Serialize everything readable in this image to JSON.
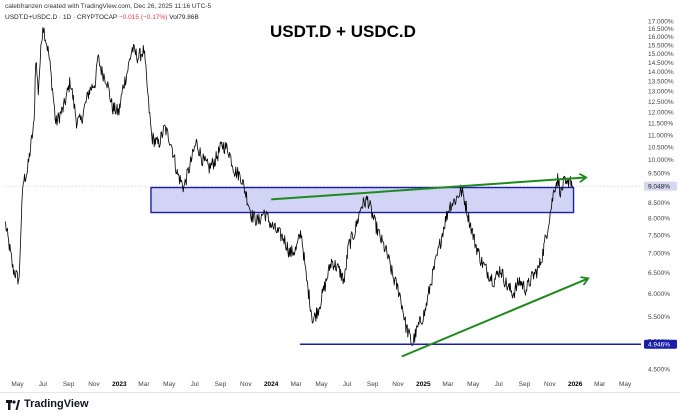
{
  "header": {
    "credit": "calebfranzen created with TradingView.com, Dec 26, 2025 11:16 UTC-5",
    "symbol": "USDT.D+USDC.D · 1D · CRYPTOCAP",
    "change": "−0.015 (−0.17%)",
    "volume": "Vol79.86B"
  },
  "footer": {
    "brand": "TradingView",
    "logo_icon": "tradingview-logo-icon"
  },
  "colors": {
    "price_line": "#000000",
    "zone_fill": "#c9cdf3",
    "zone_border": "#1a1fa8",
    "support_line": "#1a1fa8",
    "trend_arrow": "#1e8a1e",
    "badge_bg": "#1a1fa8",
    "last_badge_bg": "#d6d8ee"
  },
  "chart_data": {
    "type": "line",
    "title": "USDT.D + USDC.D",
    "xlabel": "",
    "ylabel": "",
    "y_scale": "log",
    "ylim": [
      4.3,
      17.4
    ],
    "grid": false,
    "y_ticks": [
      "17.000%",
      "16.500%",
      "16.000%",
      "15.500%",
      "15.000%",
      "14.500%",
      "14.000%",
      "13.500%",
      "13.000%",
      "12.500%",
      "12.000%",
      "11.500%",
      "11.000%",
      "10.500%",
      "10.000%",
      "9.500%",
      "9.000%",
      "8.500%",
      "8.000%",
      "7.500%",
      "7.000%",
      "6.500%",
      "6.000%",
      "5.500%",
      "5.000%",
      "4.500%"
    ],
    "x_ticks": [
      "May",
      "Jul",
      "Sep",
      "Nov",
      "2023",
      "Mar",
      "May",
      "Jul",
      "Sep",
      "Nov",
      "2024",
      "Mar",
      "May",
      "Jul",
      "Sep",
      "Nov",
      "2025",
      "Mar",
      "May",
      "Jul",
      "Sep",
      "Nov",
      "2026",
      "Mar",
      "May"
    ],
    "x_ticks_bold": [
      "2023",
      "2024",
      "2025",
      "2026"
    ],
    "series": [
      {
        "x": [
          "2022-04-01",
          "2022-04-20",
          "2022-05-05",
          "2022-05-10",
          "2022-05-15",
          "2022-05-25",
          "2022-06-10",
          "2022-06-14",
          "2022-06-20",
          "2022-07-01",
          "2022-07-15",
          "2022-08-01",
          "2022-08-20",
          "2022-09-05",
          "2022-09-20",
          "2022-10-01",
          "2022-10-20",
          "2022-11-05",
          "2022-11-10",
          "2022-11-20",
          "2022-12-01",
          "2022-12-15",
          "2022-12-31",
          "2023-01-10",
          "2023-01-20",
          "2023-02-01",
          "2023-02-15",
          "2023-03-01",
          "2023-03-12",
          "2023-03-20",
          "2023-04-05",
          "2023-04-20",
          "2023-05-05",
          "2023-05-20",
          "2023-06-05",
          "2023-06-20",
          "2023-07-05",
          "2023-07-20",
          "2023-08-05",
          "2023-08-20",
          "2023-09-05",
          "2023-09-20",
          "2023-10-05",
          "2023-10-20",
          "2023-11-01",
          "2023-11-15",
          "2023-12-01",
          "2023-12-15",
          "2024-01-01",
          "2024-01-15",
          "2024-02-01",
          "2024-02-15",
          "2024-03-01",
          "2024-03-13",
          "2024-03-25",
          "2024-04-10",
          "2024-04-25",
          "2024-05-10",
          "2024-05-25",
          "2024-06-10",
          "2024-06-25",
          "2024-07-05",
          "2024-07-20",
          "2024-08-05",
          "2024-08-20",
          "2024-09-05",
          "2024-09-20",
          "2024-10-05",
          "2024-10-20",
          "2024-11-05",
          "2024-11-20",
          "2024-12-05",
          "2024-12-20",
          "2025-01-05",
          "2025-01-20",
          "2025-02-05",
          "2025-02-20",
          "2025-03-05",
          "2025-03-20",
          "2025-04-01",
          "2025-04-08",
          "2025-04-20",
          "2025-05-05",
          "2025-05-20",
          "2025-06-05",
          "2025-06-20",
          "2025-07-05",
          "2025-07-20",
          "2025-08-05",
          "2025-08-20",
          "2025-09-05",
          "2025-09-20",
          "2025-10-05",
          "2025-10-15",
          "2025-10-25",
          "2025-11-05",
          "2025-11-12",
          "2025-11-20",
          "2025-11-28",
          "2025-12-05",
          "2025-12-12",
          "2025-12-19",
          "2025-12-26"
        ],
        "values": [
          7.9,
          6.6,
          6.3,
          7.9,
          9.2,
          9.6,
          11.5,
          14.8,
          13.0,
          16.8,
          15.0,
          11.5,
          12.2,
          13.5,
          11.6,
          11.6,
          13.0,
          13.5,
          14.8,
          14.0,
          13.6,
          12.2,
          12.0,
          13.2,
          14.0,
          15.3,
          14.8,
          15.2,
          12.4,
          10.9,
          10.6,
          11.3,
          10.7,
          9.5,
          9.0,
          9.8,
          10.7,
          10.0,
          9.7,
          10.0,
          10.6,
          10.4,
          9.6,
          9.4,
          8.8,
          8.1,
          7.9,
          8.2,
          7.8,
          7.6,
          7.4,
          7.0,
          7.1,
          7.6,
          6.4,
          5.4,
          5.7,
          6.2,
          6.8,
          6.6,
          6.3,
          7.2,
          7.6,
          8.4,
          8.6,
          7.9,
          7.4,
          7.0,
          6.4,
          6.0,
          5.3,
          4.95,
          5.3,
          5.6,
          6.3,
          7.0,
          7.8,
          8.4,
          8.6,
          8.9,
          8.7,
          8.0,
          7.3,
          6.8,
          6.5,
          6.3,
          6.6,
          6.2,
          6.0,
          6.3,
          6.1,
          6.4,
          6.6,
          7.0,
          7.6,
          8.4,
          9.0,
          9.3,
          8.8,
          9.2,
          9.0,
          9.4,
          9.048
        ]
      }
    ],
    "annotations": {
      "zone": {
        "start": "2023-03-18",
        "end": "2025-12-28",
        "low": 8.18,
        "high": 9.0
      },
      "support": {
        "start": "2024-03-10",
        "end": "2026-06-01",
        "value": 4.946
      },
      "arrows": [
        {
          "from": [
            "2024-01-01",
            8.6
          ],
          "to": [
            "2026-01-25",
            9.35
          ]
        },
        {
          "from": [
            "2024-11-10",
            4.72
          ],
          "to": [
            "2026-01-30",
            6.35
          ]
        }
      ],
      "price_badges": [
        {
          "label": "9.048%",
          "value": 9.048,
          "style": "last"
        },
        {
          "label": "4.946%",
          "value": 4.946,
          "style": "support"
        }
      ]
    }
  }
}
